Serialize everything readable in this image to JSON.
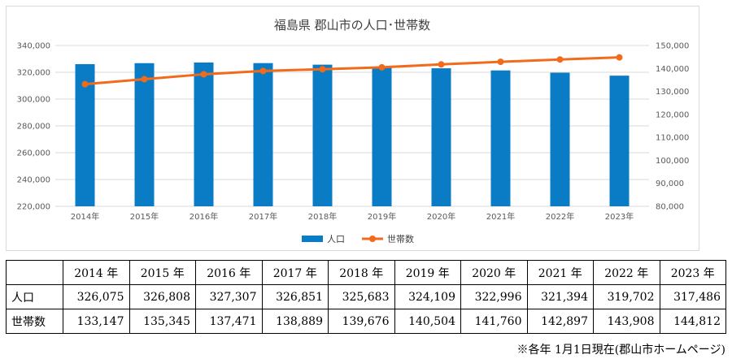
{
  "chart_data": {
    "type": "bar+line",
    "title": "福島県 郡山市の人口･世帯数",
    "categories": [
      "2014年",
      "2015年",
      "2016年",
      "2017年",
      "2018年",
      "2019年",
      "2020年",
      "2021年",
      "2022年",
      "2023年"
    ],
    "series": [
      {
        "name": "人口",
        "type": "bar",
        "axis": "left",
        "color": "#0a7cc5",
        "values": [
          326075,
          326808,
          327307,
          326851,
          325683,
          324109,
          322996,
          321394,
          319702,
          317486
        ]
      },
      {
        "name": "世帯数",
        "type": "line",
        "axis": "right",
        "color": "#f26a1b",
        "values": [
          133147,
          135345,
          137471,
          138889,
          139676,
          140504,
          141760,
          142897,
          143908,
          144812
        ]
      }
    ],
    "y_left": {
      "min": 220000,
      "max": 340000,
      "step": 20000,
      "ticks": [
        "220,000",
        "240,000",
        "260,000",
        "280,000",
        "300,000",
        "320,000",
        "340,000"
      ]
    },
    "y_right": {
      "min": 80000,
      "max": 150000,
      "step": 10000,
      "ticks": [
        "80,000",
        "90,000",
        "100,000",
        "110,000",
        "120,000",
        "130,000",
        "140,000",
        "150,000"
      ]
    },
    "grid": true,
    "legend_position": "bottom"
  },
  "table": {
    "years": [
      "2014 年",
      "2015 年",
      "2016 年",
      "2017 年",
      "2018 年",
      "2019 年",
      "2020 年",
      "2021 年",
      "2022 年",
      "2023 年"
    ],
    "rows": [
      {
        "label": "人口",
        "values": [
          "326,075",
          "326,808",
          "327,307",
          "326,851",
          "325,683",
          "324,109",
          "322,996",
          "321,394",
          "319,702",
          "317,486"
        ]
      },
      {
        "label": "世帯数",
        "values": [
          "133,147",
          "135,345",
          "137,471",
          "138,889",
          "139,676",
          "140,504",
          "141,760",
          "142,897",
          "143,908",
          "144,812"
        ]
      }
    ]
  },
  "source_note": "※各年 1月1日現在(郡山市ホームページ)"
}
